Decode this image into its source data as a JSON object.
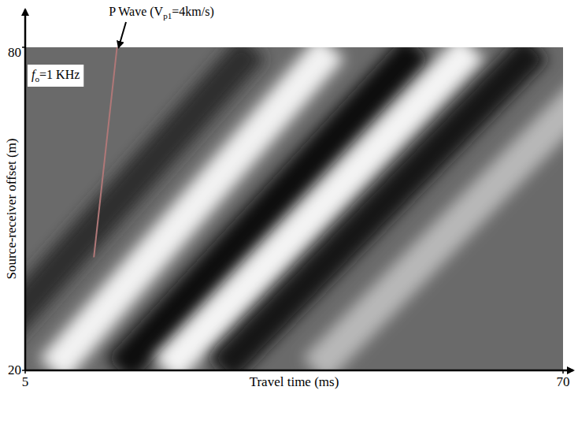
{
  "chart_data": {
    "type": "line",
    "x_label": "Travel time (ms)",
    "y_label": "Source-receiver offset (m)",
    "xlim": [
      5,
      70
    ],
    "ylim": [
      20,
      80
    ],
    "xticks": [
      5,
      70
    ],
    "yticks": [
      20,
      80
    ],
    "grid": false,
    "color": "#6a6a6a",
    "annotations": [
      {
        "text": "P Wave (V",
        "subscript": "p1",
        "text_after": "=4km/s)"
      },
      {
        "text": "f",
        "subscript": "o",
        "text_after": "=1 KHz"
      }
    ],
    "series": [
      {
        "color": "#2e2e2e",
        "line_style": "band",
        "x": [
          -2,
          32.5
        ],
        "values": [
          20,
          80
        ]
      },
      {
        "color": "#f2f2f2",
        "line_style": "band",
        "x": [
          8.3,
          42
        ],
        "values": [
          20,
          80
        ]
      },
      {
        "color": "#0e0e0e",
        "line_style": "band",
        "x": [
          16.4,
          52.4
        ],
        "values": [
          20,
          80
        ]
      },
      {
        "color": "#f4f4f4",
        "line_style": "band",
        "x": [
          22,
          59
        ],
        "values": [
          20,
          80
        ]
      },
      {
        "color": "#151515",
        "line_style": "band",
        "x": [
          28.7,
          66.7
        ],
        "values": [
          20,
          80
        ]
      },
      {
        "color": "#b8b8b8",
        "line_style": "band",
        "x": [
          40,
          78
        ],
        "values": [
          20,
          80
        ]
      },
      {
        "color": "#b07878",
        "line_style": "solid",
        "x": [
          13.3,
          16.1
        ],
        "values": [
          41,
          80
        ]
      }
    ]
  }
}
